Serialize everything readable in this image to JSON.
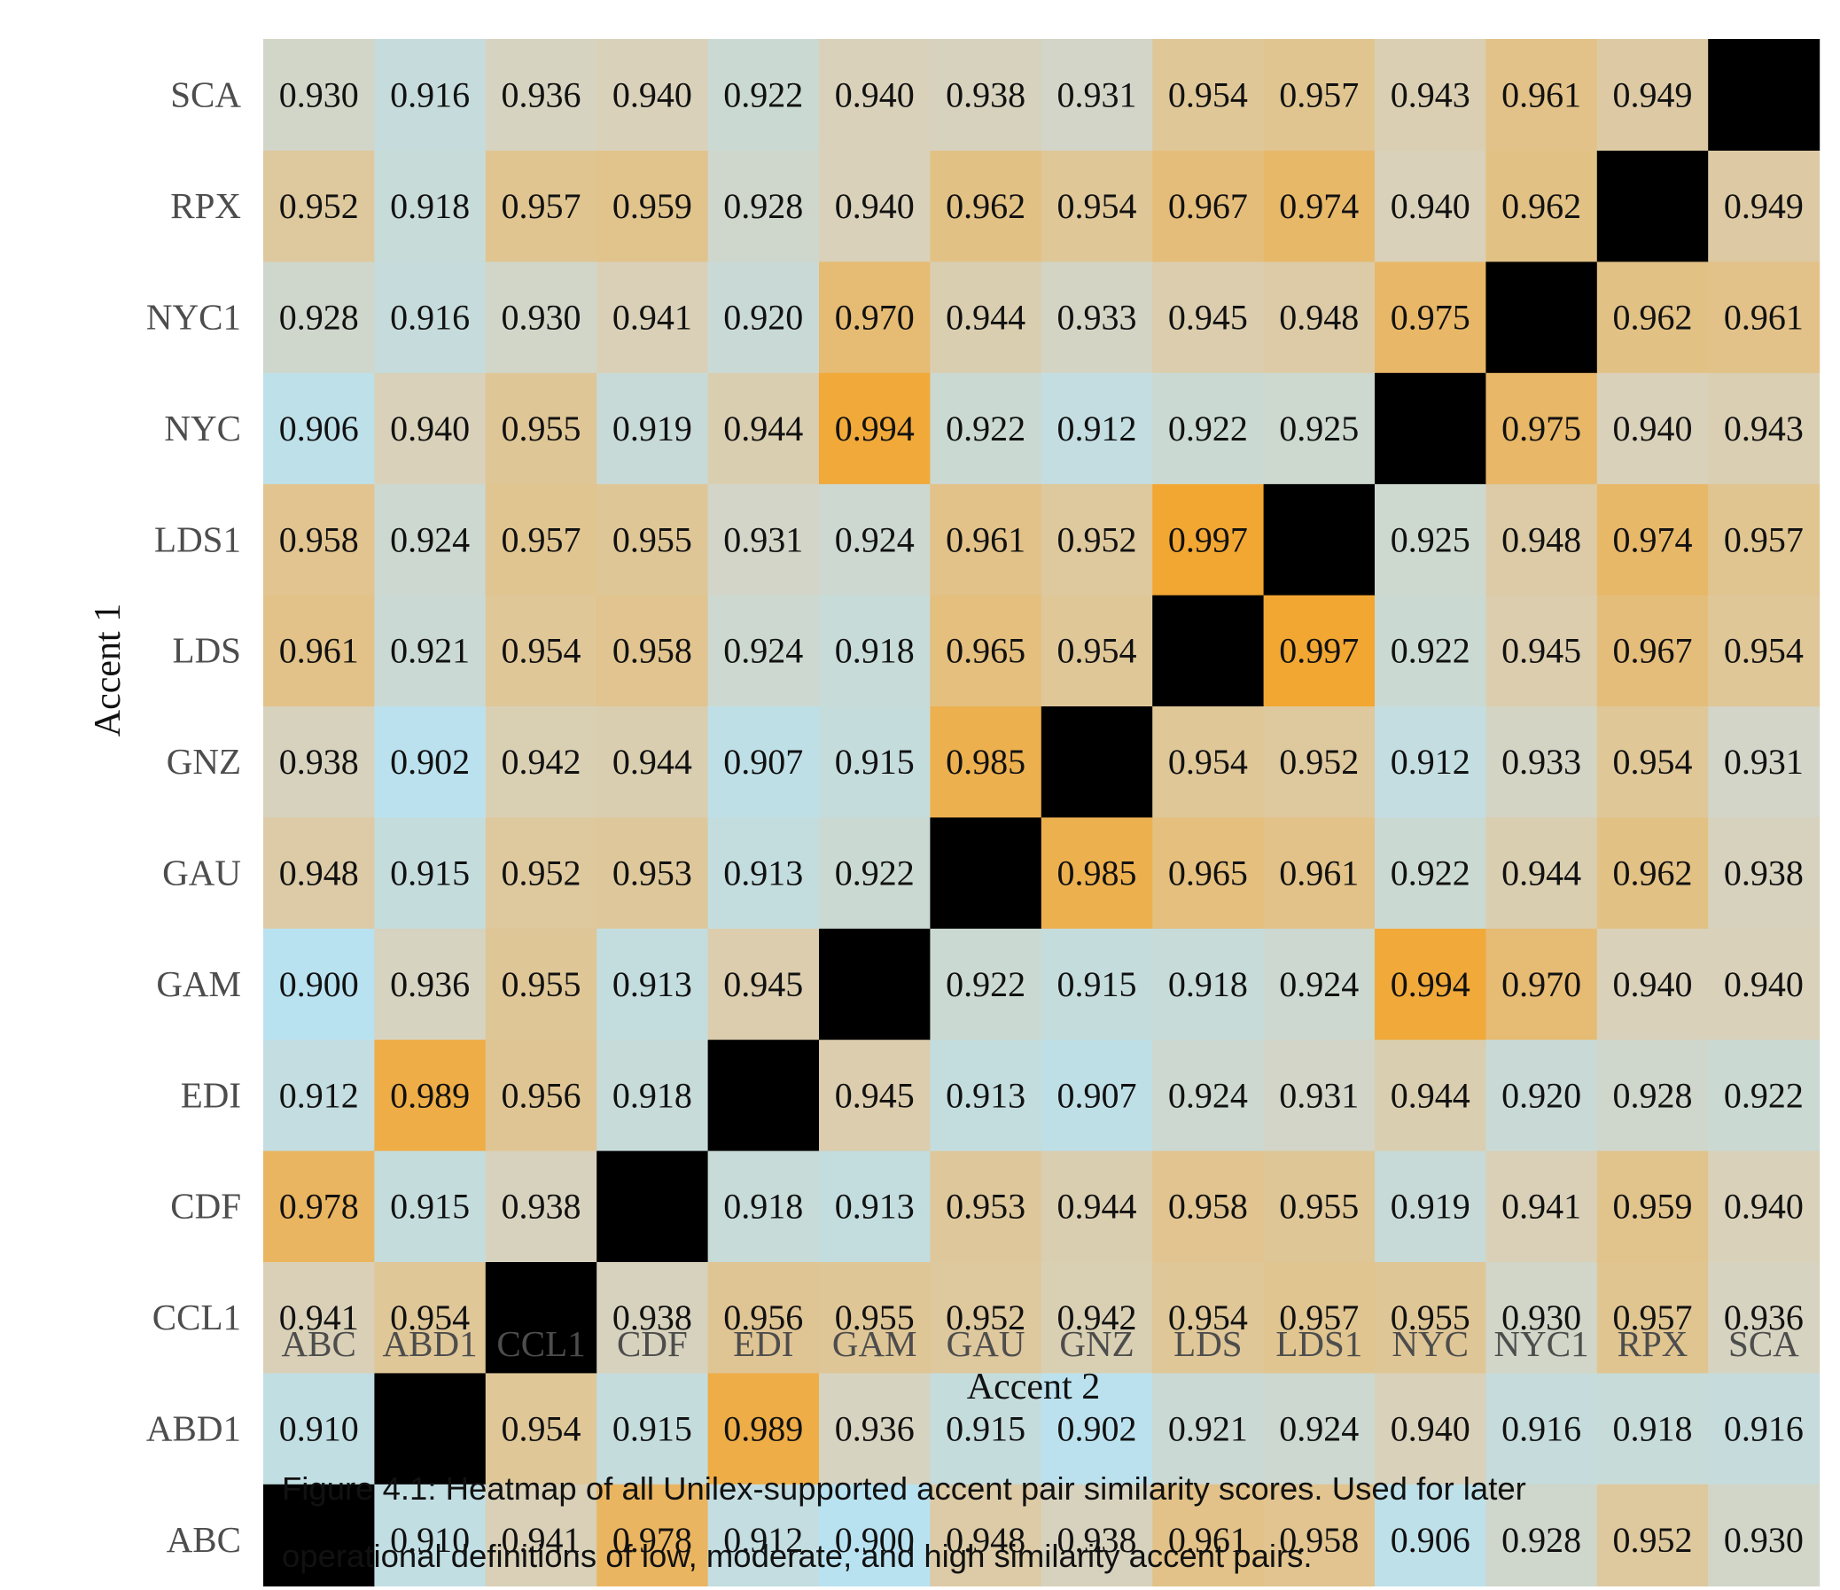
{
  "chart_data": {
    "type": "heatmap",
    "xlabel": "Accent 2",
    "ylabel": "Accent 1",
    "categories": [
      "ABC",
      "ABD1",
      "CCL1",
      "CDF",
      "EDI",
      "GAM",
      "GAU",
      "GNZ",
      "LDS",
      "LDS1",
      "NYC",
      "NYC1",
      "RPX",
      "SCA"
    ],
    "values": [
      [
        null,
        0.91,
        0.941,
        0.978,
        0.912,
        0.9,
        0.948,
        0.938,
        0.961,
        0.958,
        0.906,
        0.928,
        0.952,
        0.93
      ],
      [
        0.91,
        null,
        0.954,
        0.915,
        0.989,
        0.936,
        0.915,
        0.902,
        0.921,
        0.924,
        0.94,
        0.916,
        0.918,
        0.916
      ],
      [
        0.941,
        0.954,
        null,
        0.938,
        0.956,
        0.955,
        0.952,
        0.942,
        0.954,
        0.957,
        0.955,
        0.93,
        0.957,
        0.936
      ],
      [
        0.978,
        0.915,
        0.938,
        null,
        0.918,
        0.913,
        0.953,
        0.944,
        0.958,
        0.955,
        0.919,
        0.941,
        0.959,
        0.94
      ],
      [
        0.912,
        0.989,
        0.956,
        0.918,
        null,
        0.945,
        0.913,
        0.907,
        0.924,
        0.931,
        0.944,
        0.92,
        0.928,
        0.922
      ],
      [
        0.9,
        0.936,
        0.955,
        0.913,
        0.945,
        null,
        0.922,
        0.915,
        0.918,
        0.924,
        0.994,
        0.97,
        0.94,
        0.94
      ],
      [
        0.948,
        0.915,
        0.952,
        0.953,
        0.913,
        0.922,
        null,
        0.985,
        0.965,
        0.961,
        0.922,
        0.944,
        0.962,
        0.938
      ],
      [
        0.938,
        0.902,
        0.942,
        0.944,
        0.907,
        0.915,
        0.985,
        null,
        0.954,
        0.952,
        0.912,
        0.933,
        0.954,
        0.931
      ],
      [
        0.961,
        0.921,
        0.954,
        0.958,
        0.924,
        0.918,
        0.965,
        0.954,
        null,
        0.997,
        0.922,
        0.945,
        0.967,
        0.954
      ],
      [
        0.958,
        0.924,
        0.957,
        0.955,
        0.931,
        0.924,
        0.961,
        0.952,
        0.997,
        null,
        0.925,
        0.948,
        0.974,
        0.957
      ],
      [
        0.906,
        0.94,
        0.955,
        0.919,
        0.944,
        0.994,
        0.922,
        0.912,
        0.922,
        0.925,
        null,
        0.975,
        0.94,
        0.943
      ],
      [
        0.928,
        0.916,
        0.93,
        0.941,
        0.92,
        0.97,
        0.944,
        0.933,
        0.945,
        0.948,
        0.975,
        null,
        0.962,
        0.961
      ],
      [
        0.952,
        0.918,
        0.957,
        0.959,
        0.928,
        0.94,
        0.962,
        0.954,
        0.967,
        0.974,
        0.94,
        0.962,
        null,
        0.949
      ],
      [
        0.93,
        0.916,
        0.936,
        0.94,
        0.922,
        0.94,
        0.938,
        0.931,
        0.954,
        0.957,
        0.943,
        0.961,
        0.949,
        null
      ]
    ],
    "value_range": [
      0.9,
      0.997
    ],
    "colors": {
      "low": "#b9e2f1",
      "mid": "#d8d2bc",
      "high": "#f2a733",
      "diagonal": "#000000"
    },
    "grid": false,
    "legend": "none"
  },
  "caption": {
    "line1": "Figure 4.1: Heatmap of all Unilex-supported accent pair similarity scores. Used for later",
    "line2": "operational definitions of low, moderate, and high similarity accent pairs."
  }
}
